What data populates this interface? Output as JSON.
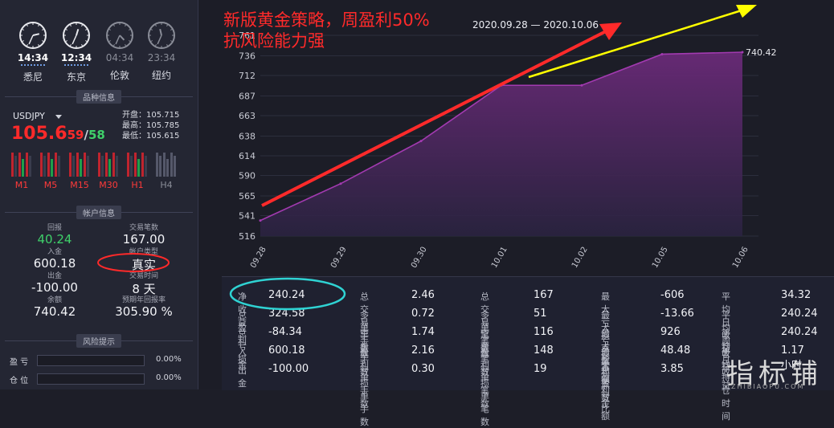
{
  "clocks": [
    {
      "time": "14:34",
      "city": "悉尼",
      "active": true
    },
    {
      "time": "12:34",
      "city": "东京",
      "active": true
    },
    {
      "time": "04:34",
      "city": "伦敦",
      "active": false
    },
    {
      "time": "23:34",
      "city": "纽约",
      "active": false
    }
  ],
  "symbol_section": {
    "header": "品种信息",
    "symbol": "USDJPY",
    "price_main": "105.6",
    "price_sub": "59",
    "slash": "/",
    "price_ask": "58",
    "open": "开盘：105.715",
    "high": "最高：105.785",
    "low": "最低：105.615",
    "timeframes": [
      "M1",
      "M5",
      "M15",
      "M30",
      "H1",
      "H4"
    ]
  },
  "account_section": {
    "header": "帐户信息",
    "items": [
      {
        "key": "回报",
        "value": "40.24",
        "accent": "#3fd06a"
      },
      {
        "key": "交易笔数",
        "value": "167.00"
      },
      {
        "key": "入金",
        "value": "600.18"
      },
      {
        "key": "帐户类型",
        "value": "真实"
      },
      {
        "key": "出金",
        "value": "-100.00"
      },
      {
        "key": "交易时间",
        "value": "8 天"
      },
      {
        "key": "余额",
        "value": "740.42"
      },
      {
        "key": "预期年回报率",
        "value": "305.90 %"
      }
    ]
  },
  "risk_section": {
    "header": "风险提示",
    "rows": [
      {
        "label": "盈 亏",
        "pct": "0.00%"
      },
      {
        "label": "仓 位",
        "pct": "0.00%"
      }
    ]
  },
  "headline": {
    "line1": "新版黄金策略，周盈利50%",
    "line2": "抗风险能力强",
    "date_range": "2020.09.28 — 2020.10.06"
  },
  "chart_data": {
    "type": "area",
    "x": [
      "09.28",
      "09.29",
      "09.30",
      "10.01",
      "10.02",
      "10.05",
      "10.06"
    ],
    "y_ticks": [
      516,
      541,
      565,
      590,
      614,
      638,
      663,
      687,
      712,
      736,
      761
    ],
    "ylim": [
      516,
      761
    ],
    "series": [
      {
        "values": [
          535,
          580,
          632,
          700,
          700,
          738,
          740.42
        ]
      }
    ],
    "last_label": "740.42",
    "color": "#a23ab0"
  },
  "stats": {
    "col1": [
      {
        "k": "净收益",
        "v": "240.24"
      },
      {
        "k": "总盈利",
        "v": "324.58"
      },
      {
        "k": "总亏损",
        "v": "-84.34"
      },
      {
        "k": "入金",
        "v": "600.18"
      },
      {
        "k": "出金",
        "v": "-100.00"
      }
    ],
    "col2": [
      {
        "k": "总交易手数",
        "v": "2.46"
      },
      {
        "k": "多单手数",
        "v": "0.72"
      },
      {
        "k": "空单手数",
        "v": "1.74"
      },
      {
        "k": "盈利单手数",
        "v": "2.16"
      },
      {
        "k": "亏损单手数",
        "v": "0.30"
      }
    ],
    "col3": [
      {
        "k": "总交易笔数",
        "v": "167"
      },
      {
        "k": "多单笔数",
        "v": "51"
      },
      {
        "k": "空单笔数",
        "v": "116"
      },
      {
        "k": "盈利单笔数",
        "v": "148"
      },
      {
        "k": "亏损单笔数",
        "v": "19"
      }
    ],
    "col4": [
      {
        "k": "最大亏损点数",
        "v": "-606"
      },
      {
        "k": "最大亏损金额",
        "v": "-13.66"
      },
      {
        "k": "最大盈利点数",
        "v": "926"
      },
      {
        "k": "最大盈利金额",
        "v": "48.48"
      },
      {
        "k": "总盈亏比",
        "v": "3.85"
      }
    ],
    "col5": [
      {
        "k": "平均日收益",
        "v": "34.32"
      },
      {
        "k": "平均周收益",
        "v": "240.24"
      },
      {
        "k": "平均月收益",
        "v": "240.24"
      },
      {
        "k": "平均持仓时间",
        "v": "1.17小时"
      }
    ]
  },
  "watermark": {
    "main": "指标铺",
    "sub": "ZHIBIAOPU.COM"
  }
}
